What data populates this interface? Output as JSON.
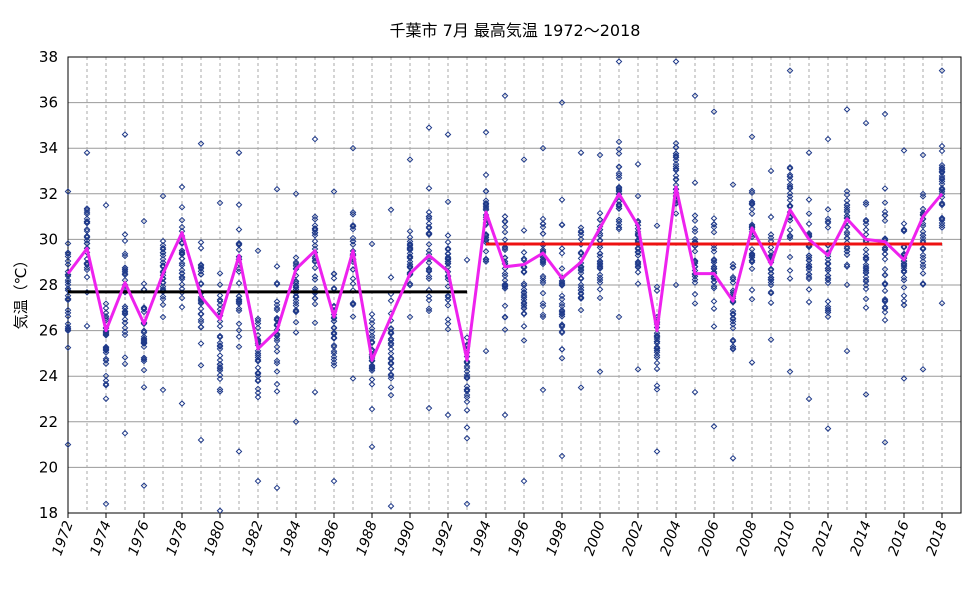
{
  "chart_data": {
    "type": "scatter",
    "title": "千葉市 7月 最高気温 1972～2018",
    "xlabel": "",
    "ylabel": "気温（℃）",
    "xlim": [
      1972,
      2019
    ],
    "ylim": [
      18,
      38
    ],
    "y_ticks": [
      18,
      20,
      22,
      24,
      26,
      28,
      30,
      32,
      34,
      36,
      38
    ],
    "x_ticks": [
      1972,
      1974,
      1976,
      1978,
      1980,
      1982,
      1984,
      1986,
      1988,
      1990,
      1992,
      1994,
      1996,
      1998,
      2000,
      2002,
      2004,
      2006,
      2008,
      2010,
      2012,
      2014,
      2016,
      2018
    ],
    "grid": true,
    "monthly_mean": {
      "color": "#ee22ee",
      "x": [
        1972,
        1973,
        1974,
        1975,
        1976,
        1977,
        1978,
        1979,
        1980,
        1981,
        1982,
        1983,
        1984,
        1985,
        1986,
        1987,
        1988,
        1989,
        1990,
        1991,
        1992,
        1993,
        1994,
        1995,
        1996,
        1997,
        1998,
        1999,
        2000,
        2001,
        2002,
        2003,
        2004,
        2005,
        2006,
        2007,
        2008,
        2009,
        2010,
        2011,
        2012,
        2013,
        2014,
        2015,
        2016,
        2017,
        2018
      ],
      "values": [
        28.5,
        29.6,
        26.0,
        28.1,
        26.3,
        28.5,
        30.3,
        27.5,
        26.5,
        29.3,
        25.2,
        26.0,
        28.7,
        29.5,
        26.6,
        29.5,
        24.7,
        26.6,
        28.5,
        29.3,
        28.6,
        24.7,
        31.2,
        28.8,
        28.9,
        29.4,
        28.3,
        29.0,
        30.5,
        32.0,
        30.6,
        26.0,
        32.3,
        28.5,
        28.5,
        27.3,
        30.5,
        28.9,
        31.3,
        30.0,
        29.3,
        30.9,
        30.0,
        29.9,
        29.1,
        31.0,
        32.0
      ]
    },
    "period_means": [
      {
        "x": [
          1972,
          1993
        ],
        "y": 27.7,
        "color": "#000000"
      },
      {
        "x": [
          1994,
          2018
        ],
        "y": 29.8,
        "color": "#ee1111"
      }
    ],
    "daily_points_color": "#1f3a8a",
    "daily_spread": [
      [
        1972,
        21.0,
        32.1
      ],
      [
        1973,
        26.2,
        33.8
      ],
      [
        1974,
        18.4,
        31.5
      ],
      [
        1975,
        21.5,
        34.6
      ],
      [
        1976,
        19.2,
        30.8
      ],
      [
        1977,
        23.4,
        31.9
      ],
      [
        1978,
        22.8,
        32.3
      ],
      [
        1979,
        21.2,
        34.2
      ],
      [
        1980,
        18.1,
        31.6
      ],
      [
        1981,
        20.7,
        33.8
      ],
      [
        1982,
        19.4,
        29.5
      ],
      [
        1983,
        19.1,
        32.2
      ],
      [
        1984,
        22.0,
        32.0
      ],
      [
        1985,
        23.3,
        34.4
      ],
      [
        1986,
        19.4,
        32.1
      ],
      [
        1987,
        23.9,
        34.0
      ],
      [
        1988,
        20.9,
        29.8
      ],
      [
        1989,
        18.3,
        31.3
      ],
      [
        1990,
        26.6,
        33.5
      ],
      [
        1991,
        22.6,
        34.9
      ],
      [
        1992,
        22.3,
        34.6
      ],
      [
        1993,
        18.4,
        29.1
      ],
      [
        1994,
        25.1,
        34.7
      ],
      [
        1995,
        22.3,
        36.3
      ],
      [
        1996,
        19.4,
        33.5
      ],
      [
        1997,
        23.4,
        34.0
      ],
      [
        1998,
        20.5,
        36.0
      ],
      [
        1999,
        23.5,
        33.8
      ],
      [
        2000,
        24.2,
        33.7
      ],
      [
        2001,
        26.6,
        37.8
      ],
      [
        2002,
        24.3,
        33.3
      ],
      [
        2003,
        20.7,
        30.6
      ],
      [
        2004,
        28.0,
        37.8
      ],
      [
        2005,
        23.3,
        36.3
      ],
      [
        2006,
        21.8,
        35.6
      ],
      [
        2007,
        20.4,
        32.4
      ],
      [
        2008,
        24.6,
        34.5
      ],
      [
        2009,
        25.6,
        33.0
      ],
      [
        2010,
        24.2,
        37.4
      ],
      [
        2011,
        23.0,
        33.8
      ],
      [
        2012,
        21.7,
        34.4
      ],
      [
        2013,
        25.1,
        35.7
      ],
      [
        2014,
        23.2,
        35.1
      ],
      [
        2015,
        21.1,
        35.5
      ],
      [
        2016,
        23.9,
        33.9
      ],
      [
        2017,
        24.3,
        33.7
      ],
      [
        2018,
        27.2,
        37.4
      ]
    ]
  }
}
